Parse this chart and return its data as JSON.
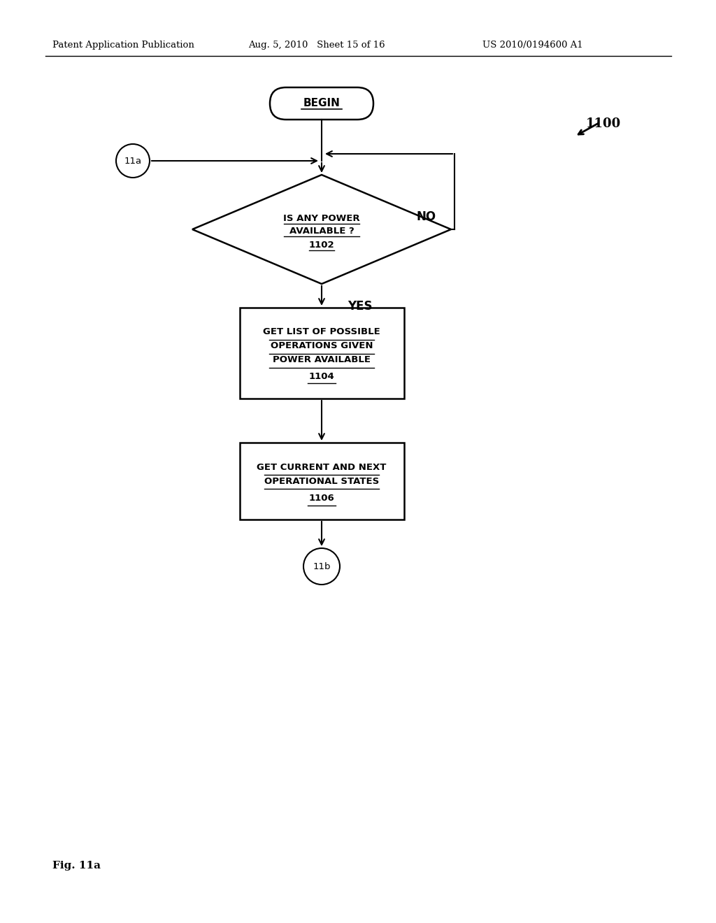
{
  "header_left": "Patent Application Publication",
  "header_mid": "Aug. 5, 2010   Sheet 15 of 16",
  "header_right": "US 2010/0194600 A1",
  "fig_label": "Fig. 11a",
  "diagram_label": "1100",
  "begin_text": "BEGIN",
  "connector_in_text": "11a",
  "diamond_text_line1": "IS ANY POWER",
  "diamond_text_line2": "AVAILABLE ?",
  "diamond_text_line3": "1102",
  "no_label": "NO",
  "yes_label": "YES",
  "box1_text_line1": "GET LIST OF POSSIBLE",
  "box1_text_line2": "OPERATIONS GIVEN",
  "box1_text_line3": "POWER AVAILABLE",
  "box1_text_line4": "1104",
  "box2_text_line1": "GET CURRENT AND NEXT",
  "box2_text_line2": "OPERATIONAL STATES",
  "box2_text_line3": "1106",
  "connector_out_text": "11b",
  "bg_color": "#ffffff",
  "line_color": "#000000"
}
